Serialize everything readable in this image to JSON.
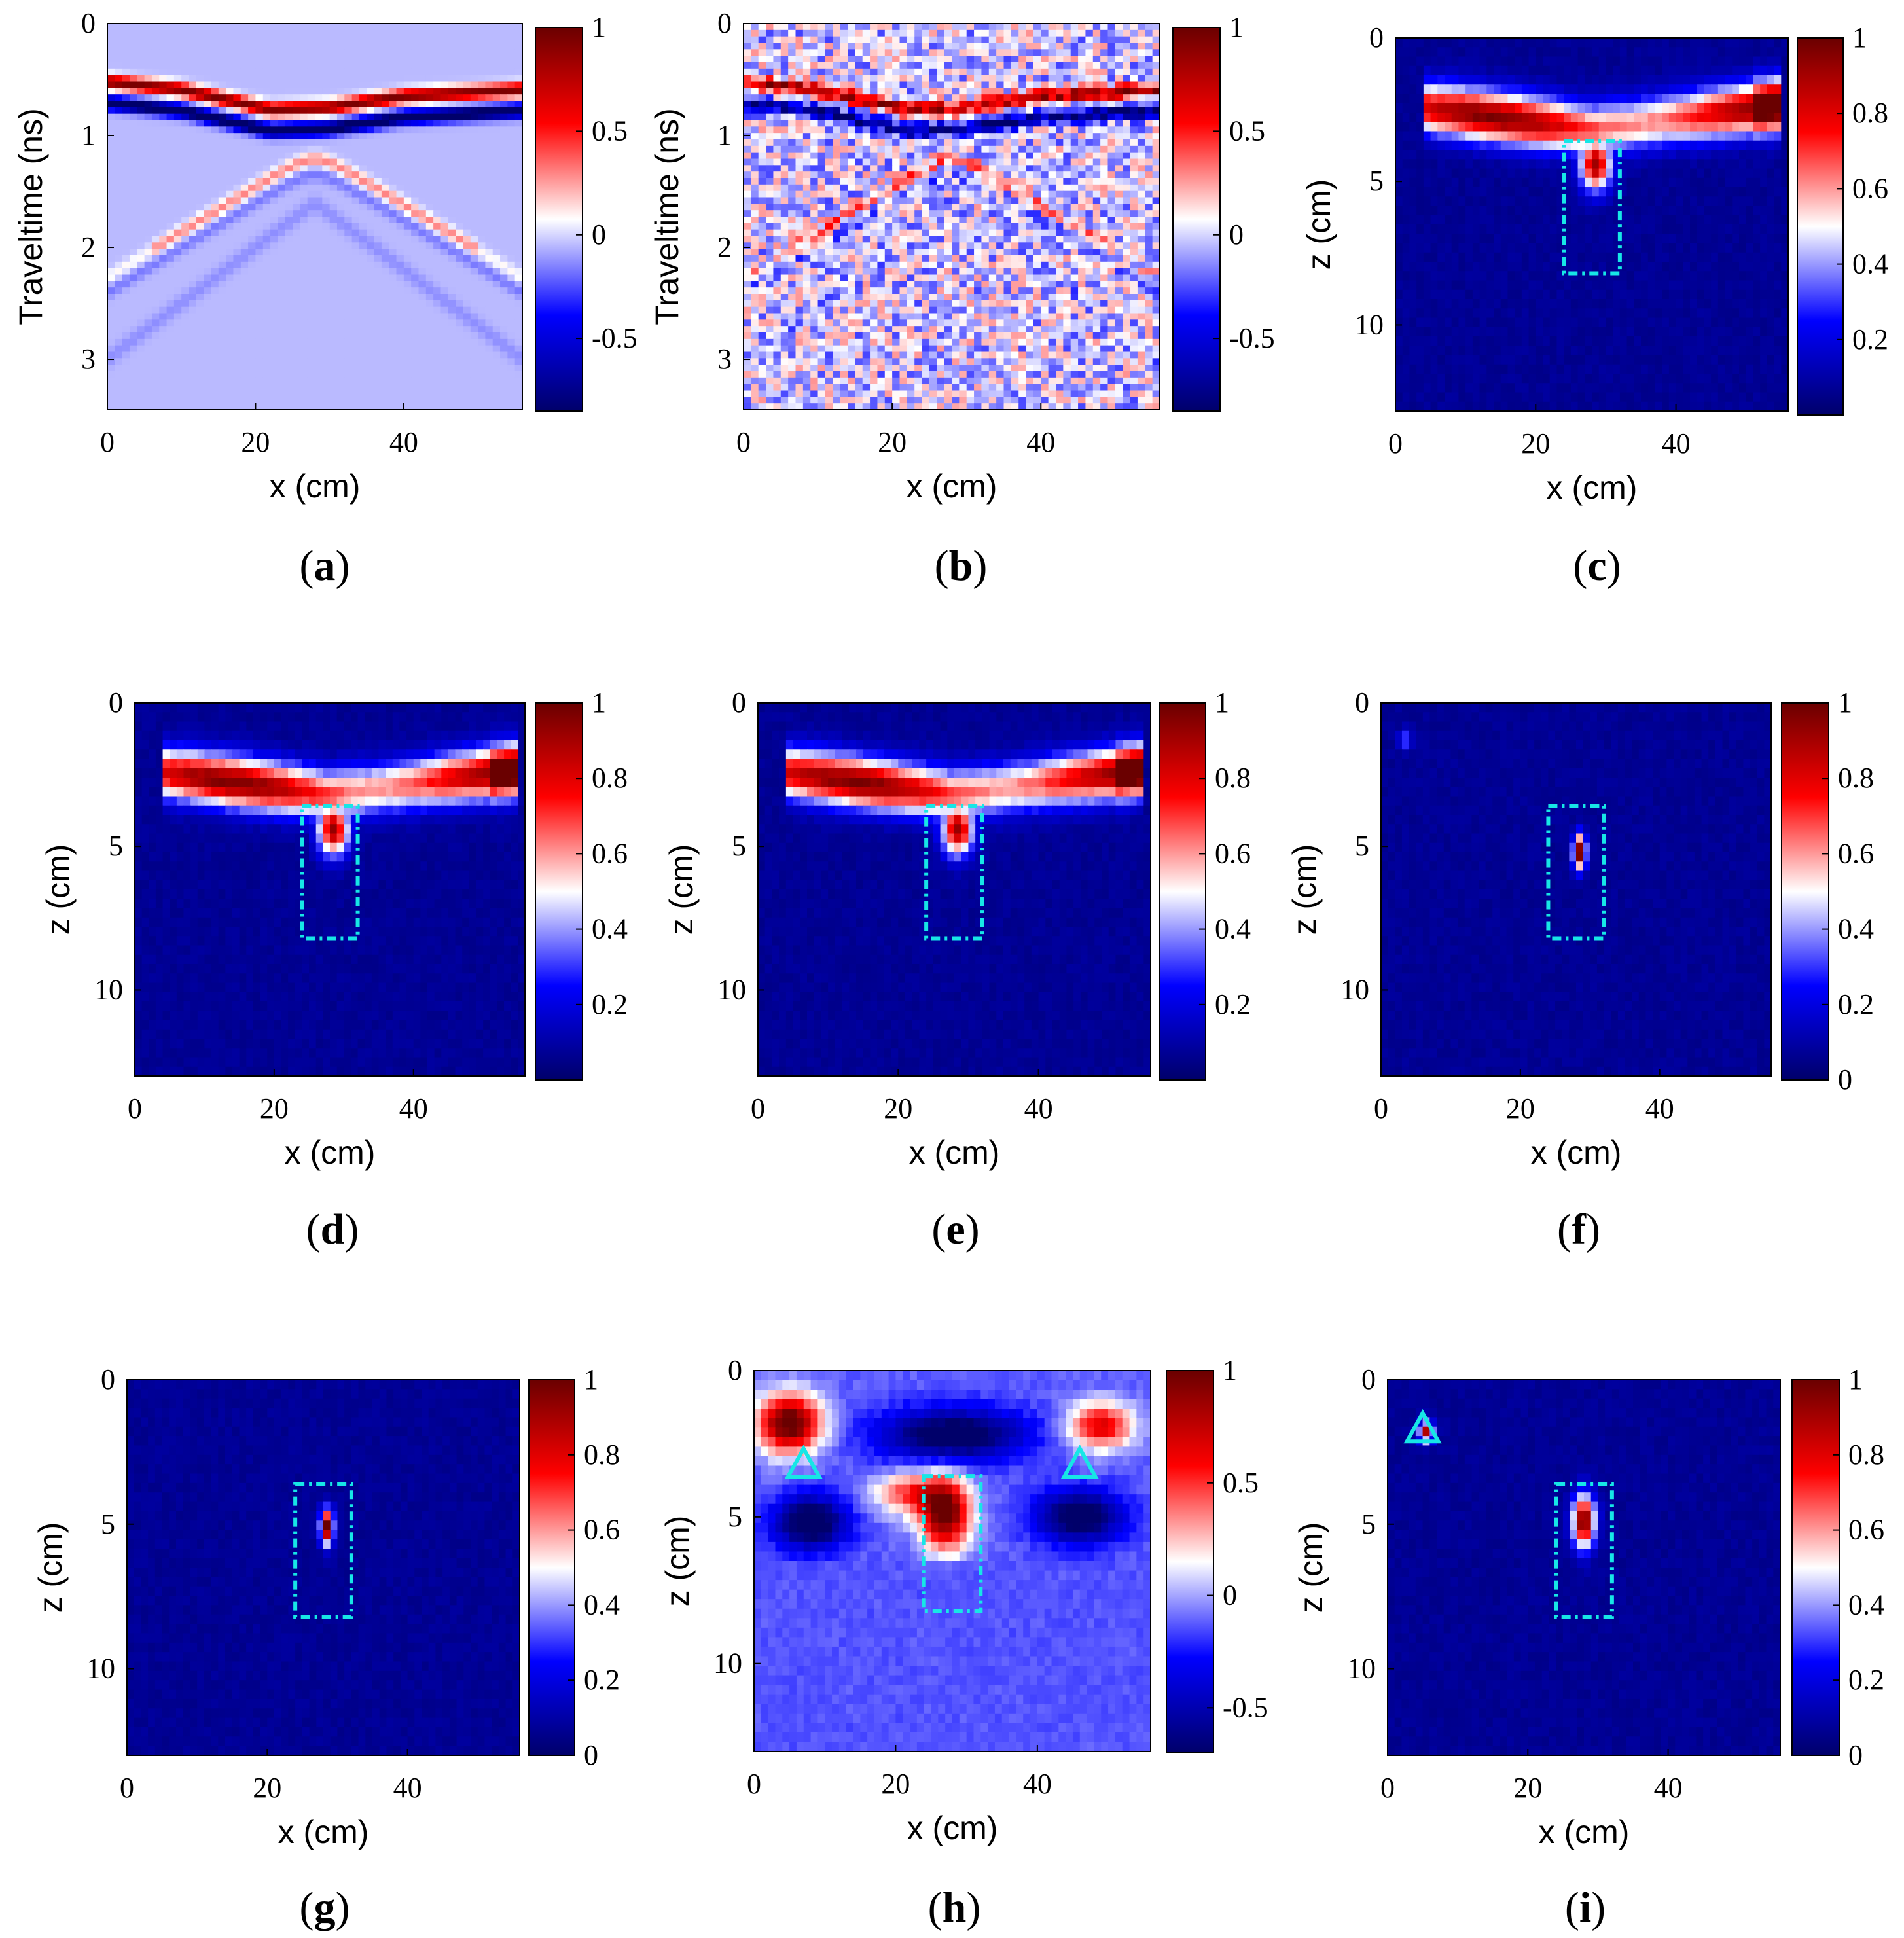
{
  "colormap": {
    "name": "blue-white-red",
    "stops": [
      "#00006a",
      "#0000ff",
      "#ffffff",
      "#ff0000",
      "#6a0000"
    ]
  },
  "marker_color": "#17e6e6",
  "chart_data": [
    {
      "id": "a",
      "caption": "a",
      "type": "heatmap",
      "kind": "bscan",
      "xlabel": "x (cm)",
      "ylabel": "Traveltime (ns)",
      "xlim": [
        0,
        56
      ],
      "ylim": [
        0,
        3.45
      ],
      "xticks": [
        "0",
        "20",
        "40"
      ],
      "yticks": [
        "0",
        "1",
        "2",
        "3"
      ],
      "clim": [
        -0.85,
        1
      ],
      "cticks": [
        "1",
        "0.5",
        "0",
        "-0.5"
      ],
      "surface_curve_ns": [
        [
          0,
          0.55
        ],
        [
          10,
          0.62
        ],
        [
          22,
          0.8
        ],
        [
          30,
          0.78
        ],
        [
          40,
          0.68
        ],
        [
          56,
          0.62
        ]
      ],
      "noise": false,
      "target_box": null,
      "triangles": []
    },
    {
      "id": "b",
      "caption": "b",
      "type": "heatmap",
      "kind": "bscan",
      "xlabel": "x (cm)",
      "ylabel": "Traveltime (ns)",
      "xlim": [
        0,
        56
      ],
      "ylim": [
        0,
        3.45
      ],
      "xticks": [
        "0",
        "20",
        "40"
      ],
      "yticks": [
        "0",
        "1",
        "2",
        "3"
      ],
      "clim": [
        -0.85,
        1
      ],
      "cticks": [
        "1",
        "0.5",
        "0",
        "-0.5"
      ],
      "surface_curve_ns": [
        [
          0,
          0.55
        ],
        [
          10,
          0.62
        ],
        [
          22,
          0.8
        ],
        [
          30,
          0.78
        ],
        [
          40,
          0.68
        ],
        [
          56,
          0.62
        ]
      ],
      "noise": true,
      "target_box": null,
      "triangles": []
    },
    {
      "id": "c",
      "caption": "c",
      "type": "heatmap",
      "kind": "image",
      "xlabel": "x (cm)",
      "ylabel": "z (cm)",
      "xlim": [
        0,
        56
      ],
      "ylim": [
        0,
        13
      ],
      "xticks": [
        "0",
        "20",
        "40"
      ],
      "yticks": [
        "0",
        "5",
        "10"
      ],
      "clim": [
        0,
        1
      ],
      "cticks": [
        "1",
        "0.8",
        "0.6",
        "0.4",
        "0.2"
      ],
      "band": true,
      "spot": false,
      "target_box": {
        "x": [
          24,
          32
        ],
        "z": [
          3.6,
          8.2
        ]
      },
      "triangles": []
    },
    {
      "id": "d",
      "caption": "d",
      "type": "heatmap",
      "kind": "image",
      "xlabel": "x (cm)",
      "ylabel": "z (cm)",
      "xlim": [
        0,
        56
      ],
      "ylim": [
        0,
        13
      ],
      "xticks": [
        "0",
        "20",
        "40"
      ],
      "yticks": [
        "0",
        "5",
        "10"
      ],
      "clim": [
        0,
        1
      ],
      "cticks": [
        "1",
        "0.8",
        "0.6",
        "0.4",
        "0.2"
      ],
      "band": true,
      "spot": false,
      "target_box": {
        "x": [
          24,
          32
        ],
        "z": [
          3.6,
          8.2
        ]
      },
      "triangles": []
    },
    {
      "id": "e",
      "caption": "e",
      "type": "heatmap",
      "kind": "image",
      "xlabel": "x (cm)",
      "ylabel": "z (cm)",
      "xlim": [
        0,
        56
      ],
      "ylim": [
        0,
        13
      ],
      "xticks": [
        "0",
        "20",
        "40"
      ],
      "yticks": [
        "0",
        "5",
        "10"
      ],
      "clim": [
        0,
        1
      ],
      "cticks": [
        "1",
        "0.8",
        "0.6",
        "0.4",
        "0.2"
      ],
      "band": true,
      "spot": false,
      "target_box": {
        "x": [
          24,
          32
        ],
        "z": [
          3.6,
          8.2
        ]
      },
      "triangles": []
    },
    {
      "id": "f",
      "caption": "f",
      "type": "heatmap",
      "kind": "image",
      "xlabel": "x (cm)",
      "ylabel": "z (cm)",
      "xlim": [
        0,
        56
      ],
      "ylim": [
        0,
        13
      ],
      "xticks": [
        "0",
        "20",
        "40"
      ],
      "yticks": [
        "0",
        "5",
        "10"
      ],
      "clim": [
        0,
        1
      ],
      "cticks": [
        "1",
        "0.8",
        "0.6",
        "0.4",
        "0.2",
        "0"
      ],
      "band": false,
      "spot": true,
      "spot_center": [
        28.5,
        5.2
      ],
      "extra_spot": [
        3.5,
        1.3
      ],
      "target_box": {
        "x": [
          24,
          32
        ],
        "z": [
          3.6,
          8.2
        ]
      },
      "triangles": []
    },
    {
      "id": "g",
      "caption": "g",
      "type": "heatmap",
      "kind": "image",
      "xlabel": "x (cm)",
      "ylabel": "z (cm)",
      "xlim": [
        0,
        56
      ],
      "ylim": [
        0,
        13
      ],
      "xticks": [
        "0",
        "20",
        "40"
      ],
      "yticks": [
        "0",
        "5",
        "10"
      ],
      "clim": [
        0,
        1
      ],
      "cticks": [
        "1",
        "0.8",
        "0.6",
        "0.4",
        "0.2",
        "0"
      ],
      "band": false,
      "spot": true,
      "spot_center": [
        28.5,
        5.1
      ],
      "extra_spot": null,
      "target_box": {
        "x": [
          24,
          32
        ],
        "z": [
          3.6,
          8.2
        ]
      },
      "triangles": []
    },
    {
      "id": "h",
      "caption": "h",
      "type": "heatmap",
      "kind": "signed",
      "xlabel": "x (cm)",
      "ylabel": "z (cm)",
      "xlim": [
        0,
        56
      ],
      "ylim": [
        0,
        13
      ],
      "xticks": [
        "0",
        "20",
        "40"
      ],
      "yticks": [
        "0",
        "5",
        "10"
      ],
      "clim": [
        -0.7,
        1
      ],
      "cticks": [
        "1",
        "0.5",
        "0",
        "-0.5"
      ],
      "target_box": {
        "x": [
          24,
          32
        ],
        "z": [
          3.6,
          8.2
        ]
      },
      "triangles": [
        [
          7,
          3.2
        ],
        [
          46,
          3.2
        ]
      ]
    },
    {
      "id": "i",
      "caption": "i",
      "type": "heatmap",
      "kind": "image",
      "xlabel": "x (cm)",
      "ylabel": "z (cm)",
      "xlim": [
        0,
        56
      ],
      "ylim": [
        0,
        13
      ],
      "xticks": [
        "0",
        "20",
        "40"
      ],
      "yticks": [
        "0",
        "5",
        "10"
      ],
      "clim": [
        0,
        1
      ],
      "cticks": [
        "1",
        "0.8",
        "0.6",
        "0.4",
        "0.2",
        "0"
      ],
      "band": false,
      "spot": true,
      "spot_center": [
        28,
        4.9
      ],
      "extra_spot": [
        5.5,
        1.8
      ],
      "big_spot": true,
      "target_box": {
        "x": [
          24,
          32
        ],
        "z": [
          3.6,
          8.2
        ]
      },
      "triangles": [
        [
          5,
          1.7
        ]
      ]
    }
  ]
}
